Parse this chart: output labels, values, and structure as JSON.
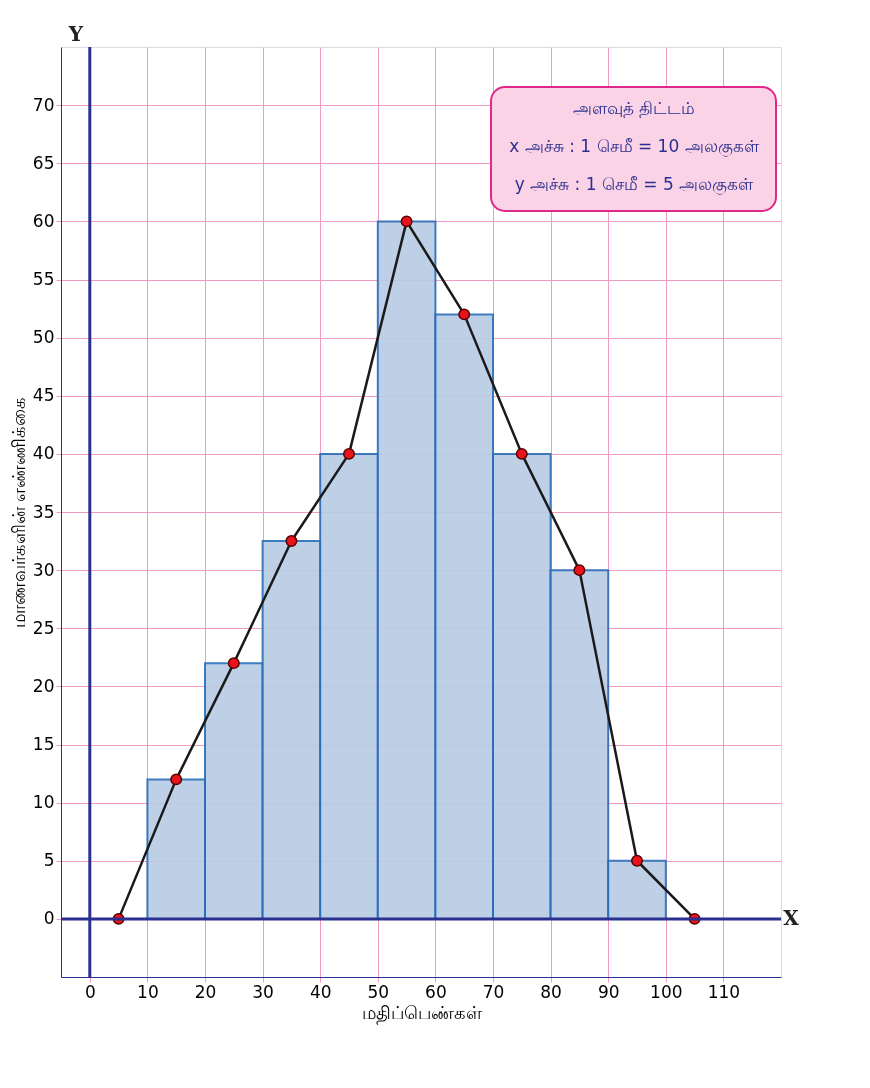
{
  "chart_data": {
    "type": "histogram",
    "xlabel": "மதிப்பெண்கள்",
    "ylabel": "மாணவர்களின் எண்ணிக்கை",
    "annotations": [
      "அளவுத் திட்டம்",
      "x அச்சு : 1 செமீ = 10 அலகுகள்",
      "y அச்சு : 1 செமீ = 5 அலகுகள்",
      "X",
      "Y"
    ],
    "series": [
      {
        "bins": [
          10,
          20,
          30,
          40,
          50,
          60,
          70,
          80,
          90,
          100
        ],
        "values": [
          12,
          22,
          32.5,
          40,
          60,
          52,
          40,
          30,
          5
        ],
        "color": "#b8cce4"
      },
      {
        "type": "line",
        "x": [
          5,
          15,
          25,
          35,
          45,
          55,
          65,
          75,
          85,
          95,
          105
        ],
        "values": [
          0,
          12,
          22,
          32.5,
          40,
          60,
          52,
          40,
          30,
          5,
          0
        ],
        "color": "#1a1a1a",
        "marker": "circle"
      }
    ],
    "xlim": [
      -5,
      120
    ],
    "ylim": [
      -5,
      75
    ],
    "xticks": [
      0,
      10,
      20,
      30,
      40,
      50,
      60,
      70,
      80,
      90,
      100,
      110
    ],
    "yticks": [
      0,
      5,
      10,
      15,
      20,
      25,
      30,
      35,
      40,
      45,
      50,
      55,
      60,
      65,
      70
    ],
    "grid": true
  }
}
